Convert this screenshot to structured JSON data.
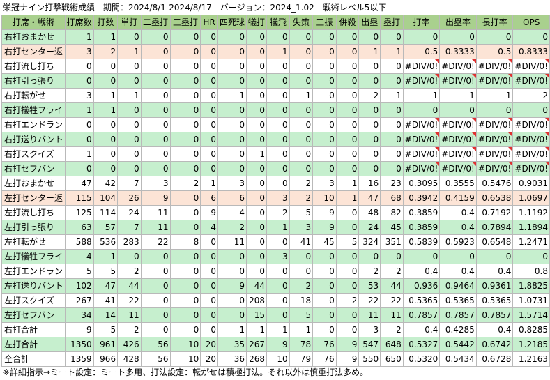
{
  "title": "栄冠ナイン打撃戦術成績　期間：2024/8/1-2024/8/17　バージョン：2024_1.02　戦術レベル5以下",
  "headers": [
    "打席・戦術",
    "打席数",
    "打数",
    "単打",
    "二塁打",
    "三塁打",
    "HR",
    "四死球",
    "犠打",
    "犠飛",
    "失策",
    "三振",
    "併殺",
    "出塁",
    "塁打",
    "打率",
    "出塁率",
    "長打率",
    "OPS"
  ],
  "rows": [
    {
      "style": "g",
      "cells": [
        "右打おまかせ",
        "1",
        "1",
        "0",
        "0",
        "0",
        "0",
        "0",
        "0",
        "0",
        "0",
        "0",
        "0",
        "0",
        "0",
        "0",
        "0",
        "0",
        "0"
      ]
    },
    {
      "style": "o",
      "cells": [
        "右打センター返",
        "3",
        "2",
        "1",
        "0",
        "0",
        "0",
        "0",
        "0",
        "1",
        "0",
        "0",
        "0",
        "1",
        "1",
        "0.5",
        "0.3333",
        "0.5",
        "0.8333"
      ]
    },
    {
      "style": "w",
      "cells": [
        "右打流し打ち",
        "0",
        "0",
        "0",
        "0",
        "0",
        "0",
        "0",
        "0",
        "0",
        "0",
        "0",
        "0",
        "0",
        "0",
        "#DIV/0!",
        "#DIV/0!",
        "#DIV/0!",
        "#DIV/0!"
      ]
    },
    {
      "style": "g",
      "cells": [
        "右打引っ張り",
        "0",
        "0",
        "0",
        "0",
        "0",
        "0",
        "0",
        "0",
        "0",
        "0",
        "0",
        "0",
        "0",
        "0",
        "#DIV/0!",
        "#DIV/0!",
        "#DIV/0!",
        "#DIV/0!"
      ]
    },
    {
      "style": "w",
      "cells": [
        "右打転がせ",
        "3",
        "1",
        "1",
        "0",
        "0",
        "0",
        "1",
        "0",
        "0",
        "1",
        "0",
        "0",
        "2",
        "1",
        "1",
        "1",
        "1",
        "2"
      ]
    },
    {
      "style": "g",
      "cells": [
        "右打犠牲フライ",
        "1",
        "1",
        "0",
        "0",
        "0",
        "0",
        "0",
        "0",
        "0",
        "0",
        "0",
        "0",
        "0",
        "0",
        "0",
        "0",
        "0",
        "0"
      ]
    },
    {
      "style": "w",
      "cells": [
        "右打エンドラン",
        "0",
        "0",
        "0",
        "0",
        "0",
        "0",
        "0",
        "0",
        "0",
        "0",
        "0",
        "0",
        "0",
        "0",
        "#DIV/0!",
        "#DIV/0!",
        "#DIV/0!",
        "#DIV/0!"
      ]
    },
    {
      "style": "g",
      "cells": [
        "右打送りバント",
        "0",
        "0",
        "0",
        "0",
        "0",
        "0",
        "0",
        "0",
        "0",
        "0",
        "0",
        "0",
        "0",
        "0",
        "#DIV/0!",
        "#DIV/0!",
        "#DIV/0!",
        "#DIV/0!"
      ]
    },
    {
      "style": "w",
      "cells": [
        "右打スクイズ",
        "1",
        "0",
        "0",
        "0",
        "0",
        "0",
        "0",
        "1",
        "0",
        "0",
        "0",
        "0",
        "0",
        "0",
        "#DIV/0!",
        "#DIV/0!",
        "#DIV/0!",
        "#DIV/0!"
      ]
    },
    {
      "style": "g",
      "cells": [
        "右打セフバン",
        "0",
        "0",
        "0",
        "0",
        "0",
        "0",
        "0",
        "0",
        "0",
        "0",
        "0",
        "0",
        "0",
        "0",
        "#DIV/0!",
        "#DIV/0!",
        "#DIV/0!",
        "#DIV/0!"
      ]
    },
    {
      "style": "w",
      "cells": [
        "左打おまかせ",
        "47",
        "42",
        "7",
        "3",
        "2",
        "1",
        "3",
        "0",
        "0",
        "2",
        "3",
        "1",
        "16",
        "23",
        "0.3095",
        "0.3555",
        "0.5476",
        "0.9031"
      ]
    },
    {
      "style": "o",
      "cells": [
        "左打センター返",
        "115",
        "104",
        "26",
        "9",
        "0",
        "6",
        "6",
        "0",
        "3",
        "2",
        "10",
        "1",
        "47",
        "68",
        "0.3942",
        "0.4159",
        "0.6538",
        "1.0697"
      ]
    },
    {
      "style": "w",
      "cells": [
        "左打流し打ち",
        "125",
        "114",
        "24",
        "11",
        "0",
        "9",
        "4",
        "0",
        "2",
        "5",
        "9",
        "0",
        "48",
        "82",
        "0.3859",
        "0.4",
        "0.7192",
        "1.1192"
      ]
    },
    {
      "style": "g",
      "cells": [
        "左打引っ張り",
        "63",
        "57",
        "7",
        "11",
        "0",
        "4",
        "2",
        "0",
        "1",
        "3",
        "9",
        "0",
        "24",
        "45",
        "0.3859",
        "0.4",
        "0.7894",
        "1.1894"
      ]
    },
    {
      "style": "w",
      "cells": [
        "左打転がせ",
        "588",
        "536",
        "283",
        "22",
        "8",
        "0",
        "11",
        "0",
        "0",
        "41",
        "45",
        "5",
        "324",
        "351",
        "0.5839",
        "0.5923",
        "0.6548",
        "1.2471"
      ]
    },
    {
      "style": "g",
      "cells": [
        "左打犠牲フライ",
        "4",
        "1",
        "0",
        "0",
        "0",
        "0",
        "0",
        "0",
        "3",
        "0",
        "0",
        "0",
        "0",
        "0",
        "0",
        "0",
        "0",
        "0"
      ]
    },
    {
      "style": "w",
      "cells": [
        "左打エンドラン",
        "5",
        "5",
        "2",
        "0",
        "0",
        "0",
        "0",
        "0",
        "0",
        "0",
        "0",
        "0",
        "2",
        "2",
        "0.4",
        "0.4",
        "0.4",
        "0.8"
      ]
    },
    {
      "style": "g",
      "cells": [
        "左打送りバント",
        "102",
        "47",
        "44",
        "0",
        "0",
        "0",
        "9",
        "44",
        "0",
        "2",
        "0",
        "0",
        "53",
        "44",
        "0.936",
        "0.9464",
        "0.9361",
        "1.8825"
      ]
    },
    {
      "style": "w",
      "cells": [
        "左打スクイズ",
        "267",
        "41",
        "22",
        "0",
        "0",
        "0",
        "0",
        "208",
        "0",
        "18",
        "0",
        "2",
        "22",
        "22",
        "0.5365",
        "0.5365",
        "0.5365",
        "1.0731"
      ]
    },
    {
      "style": "g",
      "cells": [
        "左打セフバン",
        "34",
        "14",
        "11",
        "0",
        "0",
        "0",
        "0",
        "15",
        "0",
        "5",
        "0",
        "0",
        "11",
        "11",
        "0.7857",
        "0.7857",
        "0.7857",
        "1.5714"
      ]
    },
    {
      "style": "w",
      "cells": [
        "右打合計",
        "9",
        "5",
        "2",
        "0",
        "0",
        "0",
        "1",
        "1",
        "1",
        "1",
        "0",
        "0",
        "3",
        "2",
        "0.4",
        "0.4285",
        "0.4",
        "0.8285"
      ]
    },
    {
      "style": "g",
      "cells": [
        "左打合計",
        "1350",
        "961",
        "426",
        "56",
        "10",
        "20",
        "35",
        "267",
        "9",
        "78",
        "76",
        "9",
        "547",
        "648",
        "0.5327",
        "0.5442",
        "0.6742",
        "1.2185"
      ]
    },
    {
      "style": "w",
      "cells": [
        "全合計",
        "1359",
        "966",
        "428",
        "56",
        "10",
        "20",
        "36",
        "268",
        "10",
        "79",
        "76",
        "9",
        "550",
        "650",
        "0.5320",
        "0.5434",
        "0.6728",
        "1.2163"
      ]
    }
  ],
  "footnote": "※詳細指示→ミート設定：ミート多用、打法設定：転がせは積極打法。それ以外は慎重打法多め。",
  "colors": {
    "header": "#a9d08e",
    "green_row": "#c6efce",
    "orange_row": "#fce4d6",
    "comment_marker": "#e03030"
  }
}
